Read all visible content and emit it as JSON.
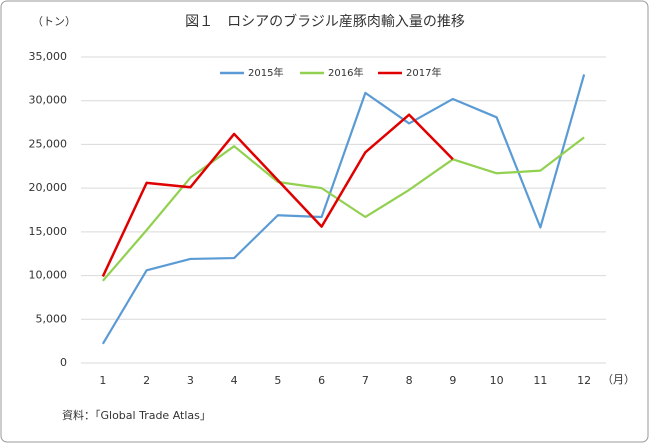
{
  "chart_data": {
    "type": "line",
    "title": "図１　ロシアのブラジル産豚肉輸入量の推移",
    "y_label": "（トン）",
    "x_label": "（月）",
    "source": "資料：「Global Trade Atlas」",
    "categories": [
      "1",
      "2",
      "3",
      "4",
      "5",
      "6",
      "7",
      "8",
      "9",
      "10",
      "11",
      "12"
    ],
    "series": [
      {
        "name": "2015年",
        "color": "#5b9bd5",
        "values": [
          2200,
          10600,
          11900,
          12000,
          16900,
          16700,
          30900,
          27400,
          30200,
          28100,
          15500,
          33000
        ]
      },
      {
        "name": "2016年",
        "color": "#92d050",
        "values": [
          9400,
          15200,
          21200,
          24800,
          20700,
          20000,
          16700,
          19800,
          23300,
          21700,
          22000,
          25800
        ]
      },
      {
        "name": "2017年",
        "color": "#e00000",
        "values": [
          9900,
          20600,
          20100,
          26200,
          20900,
          15600,
          24100,
          28400,
          23300,
          null,
          null,
          null
        ]
      }
    ],
    "ylim": [
      0,
      35000
    ],
    "yticks": [
      0,
      {
        "value": 5000,
        "label": "5,000"
      },
      {
        "value": 10000,
        "label": "10,000"
      },
      {
        "value": 15000,
        "label": "15,000"
      },
      {
        "value": 20000,
        "label": "20,000"
      },
      {
        "value": 25000,
        "label": "25,000"
      },
      {
        "value": 30000,
        "label": "30,000"
      },
      {
        "value": 35000,
        "label": "35,000"
      }
    ],
    "grid": true,
    "legend": "top"
  }
}
